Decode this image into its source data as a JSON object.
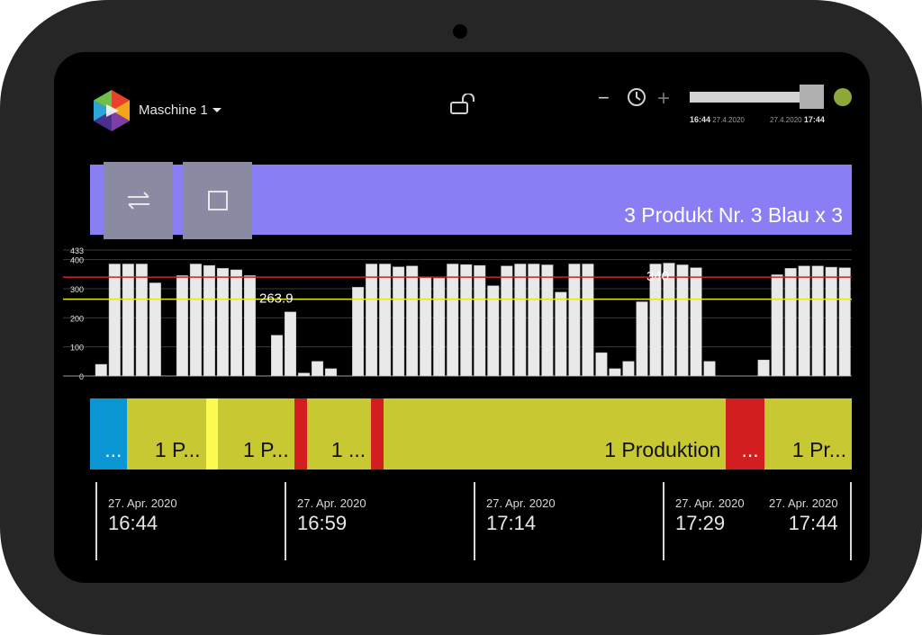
{
  "header": {
    "machine_name": "Maschine 1",
    "zoom_out_label": "−",
    "zoom_in_label": "+",
    "range_start_time": "16:44",
    "range_start_date": "27.4.2020",
    "range_end_date": "27.4.2020",
    "range_end_time": "17:44"
  },
  "order": {
    "text": "3 Produkt Nr. 3 Blau x 3"
  },
  "chart_data": {
    "type": "bar",
    "yticks": [
      0,
      100,
      200,
      300,
      400,
      433
    ],
    "ylim": [
      0,
      433
    ],
    "target_line": {
      "value": 340,
      "label": "340",
      "color": "#d02020"
    },
    "average_line": {
      "value": 263.9,
      "label": "263.9",
      "color": "#e6e619"
    },
    "values": [
      0,
      40,
      385,
      385,
      385,
      320,
      0,
      345,
      385,
      380,
      370,
      365,
      345,
      0,
      140,
      220,
      10,
      50,
      25,
      0,
      305,
      385,
      385,
      375,
      378,
      340,
      336,
      385,
      383,
      380,
      310,
      378,
      385,
      385,
      382,
      288,
      385,
      385,
      80,
      25,
      50,
      255,
      385,
      388,
      382,
      372,
      50,
      0,
      0,
      0,
      55,
      348,
      370,
      378,
      378,
      374,
      372
    ]
  },
  "states": [
    {
      "label": "...",
      "color": "#0a96d2",
      "start": 0,
      "end": 0.049
    },
    {
      "label": "1 P...",
      "color": "#c8c832",
      "start": 0.049,
      "end": 0.152
    },
    {
      "label": "",
      "color": "#fafa50",
      "start": 0.152,
      "end": 0.168
    },
    {
      "label": "1 P...",
      "color": "#c8c832",
      "start": 0.168,
      "end": 0.268
    },
    {
      "label": "",
      "color": "#d21e1e",
      "start": 0.268,
      "end": 0.285
    },
    {
      "label": "1 ...",
      "color": "#c8c832",
      "start": 0.285,
      "end": 0.369
    },
    {
      "label": "",
      "color": "#d21e1e",
      "start": 0.369,
      "end": 0.385
    },
    {
      "label": "1 Produktion",
      "color": "#c8c832",
      "start": 0.385,
      "end": 0.835
    },
    {
      "label": "...",
      "color": "#d21e1e",
      "start": 0.835,
      "end": 0.885
    },
    {
      "label": "1 Pr...",
      "color": "#c8c832",
      "start": 0.885,
      "end": 1.0
    }
  ],
  "time_axis": [
    {
      "date": "27. Apr. 2020",
      "time": "16:44"
    },
    {
      "date": "27. Apr. 2020",
      "time": "16:59"
    },
    {
      "date": "27. Apr. 2020",
      "time": "17:14"
    },
    {
      "date": "27. Apr. 2020",
      "time": "17:29"
    },
    {
      "date": "27. Apr. 2020",
      "time": "17:44"
    }
  ]
}
